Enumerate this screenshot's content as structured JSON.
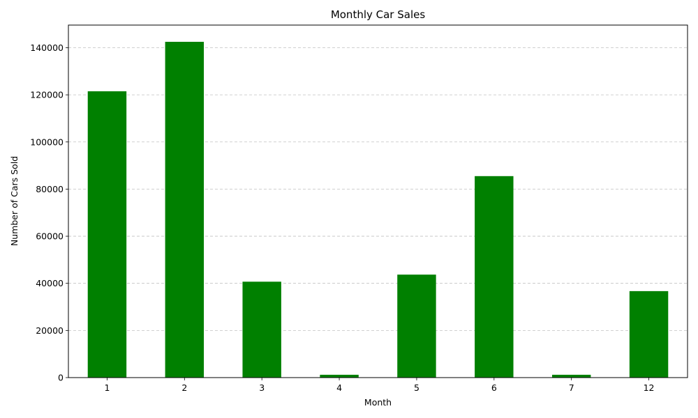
{
  "chart_data": {
    "type": "bar",
    "title": "Monthly Car Sales",
    "xlabel": "Month",
    "ylabel": "Number of Cars Sold",
    "categories": [
      "1",
      "2",
      "3",
      "4",
      "5",
      "6",
      "7",
      "12"
    ],
    "values": [
      121500,
      142500,
      40700,
      1200,
      43700,
      85500,
      1200,
      36700
    ],
    "ylim": [
      0,
      149600
    ],
    "yticks": [
      0,
      20000,
      40000,
      60000,
      80000,
      100000,
      120000,
      140000
    ],
    "ytick_labels": [
      "0",
      "20000",
      "40000",
      "60000",
      "80000",
      "100000",
      "120000",
      "140000"
    ],
    "grid": {
      "y": true,
      "x": false,
      "style": "dashed"
    },
    "bar_color": "#008000",
    "grid_color": "#c0c0c0",
    "axis_color": "#000000"
  }
}
